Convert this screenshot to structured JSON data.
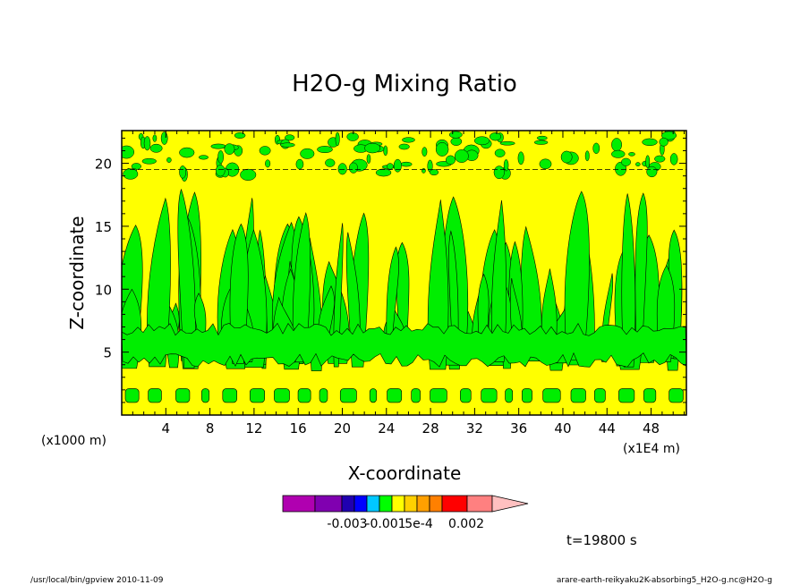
{
  "chart_data": {
    "type": "heatmap",
    "title": "H2O-g Mixing Ratio",
    "xlabel": "X-coordinate",
    "ylabel": "Z-coordinate",
    "x_unit_left": "(x1000 m)",
    "x_unit_right": "(x1E4 m)",
    "xticks": [
      "4",
      "8",
      "12",
      "16",
      "20",
      "24",
      "28",
      "32",
      "36",
      "40",
      "44",
      "48"
    ],
    "yticks": [
      "5",
      "10",
      "15",
      "20"
    ],
    "xlim": [
      0,
      51.2
    ],
    "ylim": [
      0,
      22.6
    ],
    "grid": false,
    "colorbar": {
      "tick_labels": [
        "-0.003",
        "-0.001",
        "5e-4",
        "0.002"
      ],
      "colors": [
        "#b000b0",
        "#8000b0",
        "#2000b0",
        "#0000ff",
        "#00c8ff",
        "#00ff00",
        "#ffff00",
        "#ffd000",
        "#ffa000",
        "#ff8000",
        "#ff0000",
        "#ff8080",
        "#ffc0c0"
      ]
    },
    "fill_colors": {
      "background": "#ffff00",
      "contour": "#00ee00"
    },
    "time_label": "t=19800 s"
  },
  "footer": {
    "left": "/usr/local/bin/gpview   2010-11-09",
    "right": "arare-earth-reikyaku2K-absorbing5_H2O-g.nc@H2O-g"
  }
}
